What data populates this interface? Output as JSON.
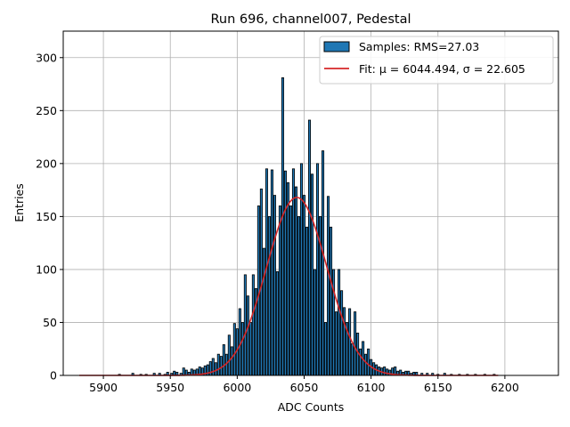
{
  "chart_data": {
    "type": "bar",
    "title": "Run 696, channel007, Pedestal",
    "xlabel": "ADC Counts",
    "ylabel": "Entries",
    "xlim": [
      5870,
      6240
    ],
    "ylim": [
      0,
      325
    ],
    "xticks": [
      5900,
      5950,
      6000,
      6050,
      6100,
      6150,
      6200
    ],
    "yticks": [
      0,
      50,
      100,
      150,
      200,
      250,
      300
    ],
    "grid": true,
    "legend_position": "top-right",
    "colors": {
      "bars": "#1f77b4",
      "bar_edge": "#000000",
      "fit": "#d62728",
      "grid": "#b0b0b0"
    },
    "series": [
      {
        "name": "Samples: RMS=27.03",
        "kind": "histogram",
        "bin_width": 1.5,
        "x": [
          5912,
          5922,
          5928,
          5932,
          5938,
          5942,
          5946,
          5948,
          5951,
          5953,
          5955,
          5958,
          5960,
          5962,
          5964,
          5966,
          5968,
          5970,
          5972,
          5974,
          5976,
          5978,
          5980,
          5982,
          5984,
          5986,
          5988,
          5990,
          5992,
          5994,
          5996,
          5998,
          6000,
          6002,
          6004,
          6006,
          6008,
          6010,
          6012,
          6014,
          6016,
          6018,
          6020,
          6022,
          6024,
          6026,
          6028,
          6030,
          6032,
          6034,
          6036,
          6038,
          6040,
          6042,
          6044,
          6046,
          6048,
          6050,
          6052,
          6054,
          6056,
          6058,
          6060,
          6062,
          6064,
          6066,
          6068,
          6070,
          6072,
          6074,
          6076,
          6078,
          6080,
          6082,
          6084,
          6086,
          6088,
          6090,
          6092,
          6094,
          6096,
          6098,
          6100,
          6102,
          6104,
          6106,
          6108,
          6110,
          6112,
          6114,
          6116,
          6118,
          6120,
          6122,
          6124,
          6126,
          6128,
          6130,
          6132,
          6134,
          6138,
          6142,
          6146,
          6150,
          6155,
          6160,
          6166,
          6172,
          6178,
          6185,
          6192
        ],
        "values": [
          1,
          2,
          1,
          1,
          2,
          2,
          1,
          3,
          2,
          4,
          3,
          2,
          7,
          5,
          3,
          6,
          5,
          6,
          8,
          7,
          9,
          10,
          13,
          16,
          12,
          20,
          18,
          29,
          20,
          38,
          27,
          49,
          44,
          63,
          50,
          95,
          75,
          50,
          95,
          82,
          160,
          176,
          120,
          195,
          150,
          194,
          170,
          98,
          160,
          281,
          193,
          182,
          160,
          195,
          178,
          150,
          200,
          170,
          140,
          241,
          190,
          100,
          200,
          150,
          212,
          50,
          169,
          140,
          100,
          60,
          100,
          80,
          64,
          50,
          63,
          30,
          60,
          40,
          25,
          32,
          20,
          25,
          15,
          12,
          10,
          8,
          7,
          8,
          6,
          5,
          7,
          8,
          4,
          5,
          3,
          4,
          4,
          2,
          3,
          3,
          2,
          2,
          2,
          1,
          2,
          1,
          1,
          1,
          1,
          1,
          1
        ]
      },
      {
        "name": "Fit: μ = 6044.494, σ = 22.605",
        "kind": "gaussian",
        "mu": 6044.494,
        "sigma": 22.605,
        "amplitude": 168,
        "x_range": [
          5882,
          6195
        ]
      }
    ]
  }
}
